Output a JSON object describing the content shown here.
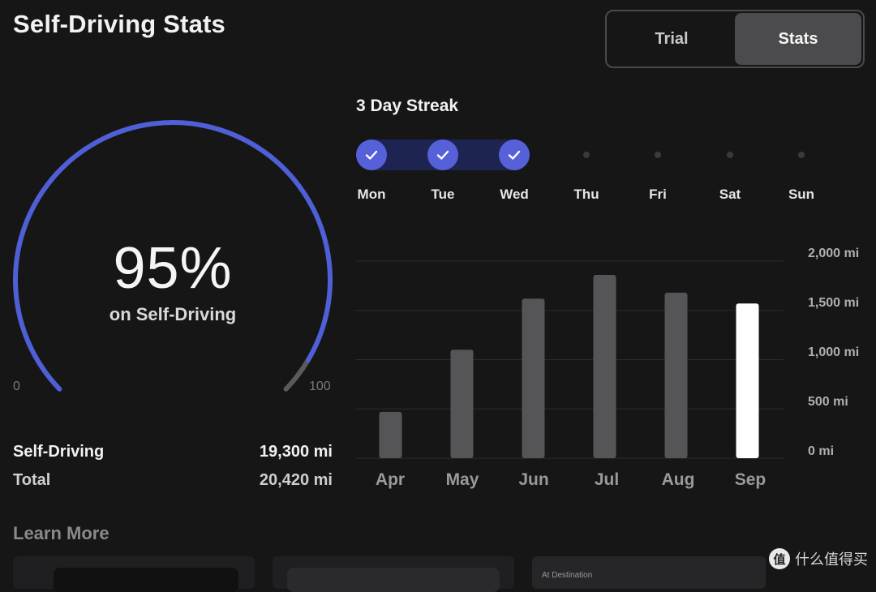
{
  "header": {
    "title": "Self-Driving Stats"
  },
  "segmented": {
    "options": [
      {
        "label": "Trial",
        "active": false
      },
      {
        "label": "Stats",
        "active": true
      }
    ]
  },
  "gauge": {
    "value_text": "95%",
    "label": "on Self-Driving",
    "min_label": "0",
    "max_label": "100",
    "percent": 95,
    "colors": {
      "progress": "#4f5fd6",
      "remainder": "#5a5a5c"
    }
  },
  "totals": {
    "rows": [
      {
        "label": "Self-Driving",
        "value": "19,300 mi"
      },
      {
        "label": "Total",
        "value": "20,420 mi"
      }
    ]
  },
  "streak": {
    "title": "3 Day Streak",
    "days": [
      {
        "label": "Mon",
        "done": true
      },
      {
        "label": "Tue",
        "done": true
      },
      {
        "label": "Wed",
        "done": true
      },
      {
        "label": "Thu",
        "done": false
      },
      {
        "label": "Fri",
        "done": false
      },
      {
        "label": "Sat",
        "done": false
      },
      {
        "label": "Sun",
        "done": false
      }
    ],
    "accent": "#5660d8"
  },
  "chart_data": {
    "type": "bar",
    "title": "",
    "xlabel": "",
    "ylabel": "",
    "categories": [
      "Apr",
      "May",
      "Jun",
      "Jul",
      "Aug",
      "Sep"
    ],
    "values": [
      470,
      1100,
      1620,
      1860,
      1680,
      1570
    ],
    "highlight_index": 5,
    "ylim": [
      0,
      2000
    ],
    "y_ticks": [
      0,
      500,
      1000,
      1500,
      2000
    ],
    "y_tick_labels": [
      "0 mi",
      "500 mi",
      "1,000 mi",
      "1,500 mi",
      "2,000 mi"
    ],
    "grid": true,
    "colors": {
      "bar": "#555557",
      "highlight": "#ffffff",
      "grid": "#2c2c2e"
    }
  },
  "learn_more": {
    "title": "Learn More",
    "card_3_text": "At Destination"
  },
  "watermark": {
    "badge": "值",
    "text": "什么值得买"
  }
}
